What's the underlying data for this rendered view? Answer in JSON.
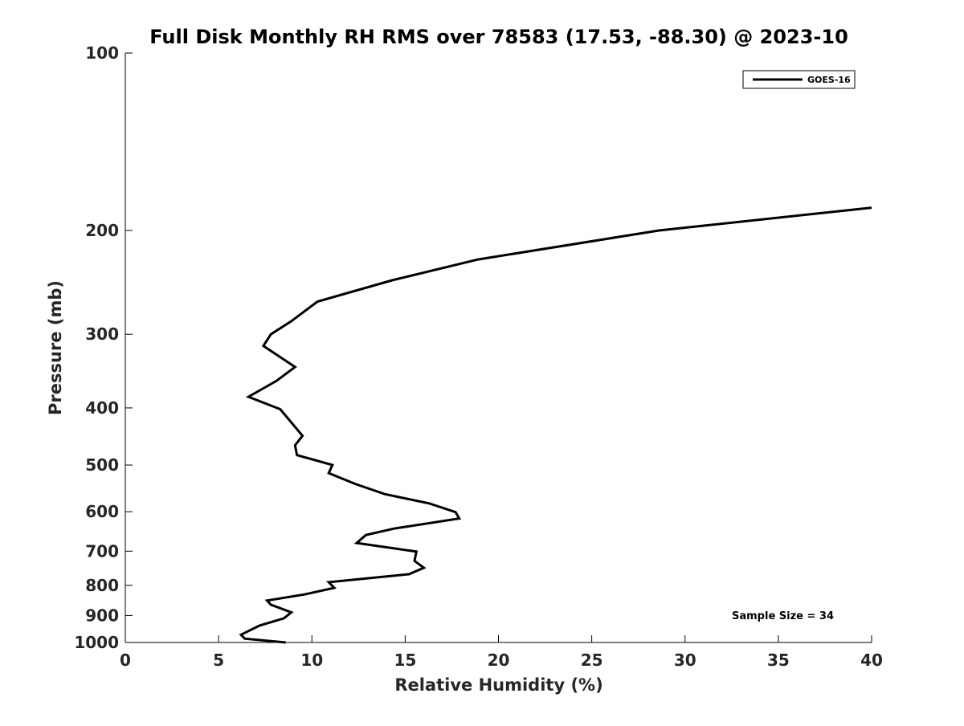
{
  "chart_data": {
    "type": "line",
    "title": "Full Disk Monthly RH RMS over 78583 (17.53, -88.30) @ 2023-10",
    "xlabel": "Relative Humidity (%)",
    "ylabel": "Pressure (mb)",
    "xlim": [
      0,
      40
    ],
    "ylim": [
      100,
      1000
    ],
    "y_scale": "log",
    "y_direction": "reversed",
    "grid": false,
    "legend_position": "top-right",
    "x_ticks": [
      0,
      5,
      10,
      15,
      20,
      25,
      30,
      35,
      40
    ],
    "x_tick_labels": [
      "0",
      "5",
      "10",
      "15",
      "20",
      "25",
      "30",
      "35",
      "40"
    ],
    "y_ticks": [
      100,
      200,
      300,
      400,
      500,
      600,
      700,
      800,
      900,
      1000
    ],
    "y_tick_labels": [
      "100",
      "200",
      "300",
      "400",
      "500",
      "600",
      "700",
      "800",
      "900",
      "1000"
    ],
    "annotation": "Sample Size = 34",
    "color": "#000000",
    "series": [
      {
        "name": "GOES-16",
        "points": [
          {
            "x": 8.6,
            "y": 1000
          },
          {
            "x": 6.4,
            "y": 985
          },
          {
            "x": 6.2,
            "y": 970
          },
          {
            "x": 7.2,
            "y": 936
          },
          {
            "x": 8.5,
            "y": 910
          },
          {
            "x": 8.9,
            "y": 889
          },
          {
            "x": 7.8,
            "y": 863
          },
          {
            "x": 7.6,
            "y": 849
          },
          {
            "x": 9.6,
            "y": 829
          },
          {
            "x": 11.2,
            "y": 808
          },
          {
            "x": 10.9,
            "y": 790
          },
          {
            "x": 15.2,
            "y": 766
          },
          {
            "x": 16.0,
            "y": 747
          },
          {
            "x": 15.5,
            "y": 727
          },
          {
            "x": 15.6,
            "y": 701
          },
          {
            "x": 12.4,
            "y": 678
          },
          {
            "x": 12.9,
            "y": 657
          },
          {
            "x": 14.4,
            "y": 641
          },
          {
            "x": 17.9,
            "y": 616
          },
          {
            "x": 17.7,
            "y": 601
          },
          {
            "x": 16.3,
            "y": 581
          },
          {
            "x": 13.9,
            "y": 560
          },
          {
            "x": 12.3,
            "y": 538
          },
          {
            "x": 10.9,
            "y": 516
          },
          {
            "x": 11.1,
            "y": 500
          },
          {
            "x": 9.2,
            "y": 481
          },
          {
            "x": 9.1,
            "y": 463
          },
          {
            "x": 9.5,
            "y": 446
          },
          {
            "x": 8.3,
            "y": 402
          },
          {
            "x": 6.6,
            "y": 383
          },
          {
            "x": 8.1,
            "y": 360
          },
          {
            "x": 9.1,
            "y": 341
          },
          {
            "x": 7.4,
            "y": 314
          },
          {
            "x": 7.8,
            "y": 300
          },
          {
            "x": 8.9,
            "y": 285
          },
          {
            "x": 10.3,
            "y": 264
          },
          {
            "x": 14.3,
            "y": 243
          },
          {
            "x": 18.9,
            "y": 224
          },
          {
            "x": 28.6,
            "y": 200
          },
          {
            "x": 40.0,
            "y": 183
          }
        ]
      }
    ]
  }
}
